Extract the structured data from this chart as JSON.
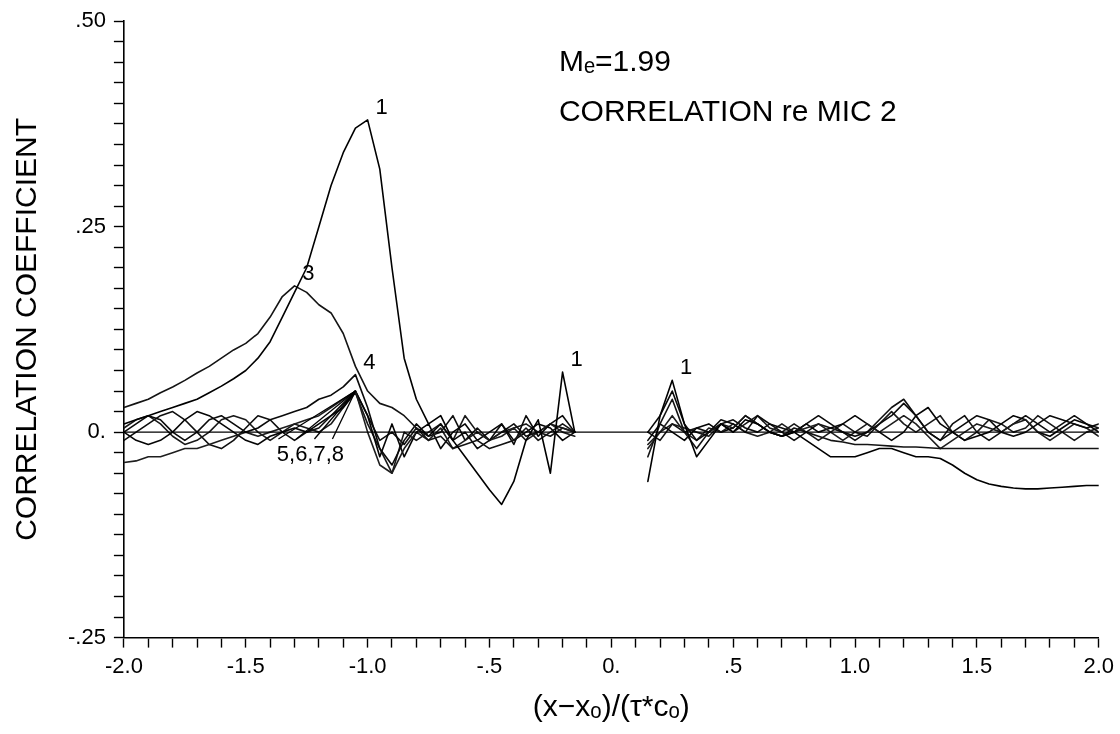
{
  "chart_data": {
    "type": "line",
    "title": "Mₑ=1.99",
    "subtitle": "CORRELATION re MIC 2",
    "xlabel": "(x−xₒ)/(τ*cₒ)",
    "ylabel": "CORRELATION COEFFICIENT",
    "x": [
      -2.0,
      -1.95,
      -1.9,
      -1.85,
      -1.8,
      -1.75,
      -1.7,
      -1.65,
      -1.6,
      -1.55,
      -1.5,
      -1.45,
      -1.4,
      -1.35,
      -1.3,
      -1.25,
      -1.2,
      -1.15,
      -1.1,
      -1.05,
      -1.0,
      -0.95,
      -0.9,
      -0.85,
      -0.8,
      -0.75,
      -0.7,
      -0.65,
      -0.6,
      -0.55,
      -0.5,
      -0.45,
      -0.4,
      -0.35,
      -0.3,
      -0.25,
      -0.2,
      -0.15,
      -0.1,
      -0.05,
      0.0,
      0.05,
      0.1,
      0.15,
      0.2,
      0.25,
      0.3,
      0.35,
      0.4,
      0.45,
      0.5,
      0.55,
      0.6,
      0.65,
      0.7,
      0.75,
      0.8,
      0.85,
      0.9,
      0.95,
      1.0,
      1.05,
      1.1,
      1.15,
      1.2,
      1.25,
      1.3,
      1.35,
      1.4,
      1.45,
      1.5,
      1.55,
      1.6,
      1.65,
      1.7,
      1.75,
      1.8,
      1.85,
      1.9,
      1.95,
      2.0
    ],
    "series": [
      {
        "color": "#000000",
        "values": [
          0.01,
          0.015,
          0.02,
          0.025,
          0.03,
          0.035,
          0.04,
          0.048,
          0.056,
          0.065,
          0.075,
          0.09,
          0.11,
          0.14,
          0.17,
          0.2,
          0.25,
          0.3,
          0.34,
          0.37,
          0.38,
          0.32,
          0.2,
          0.09,
          0.04,
          0.01,
          0.02,
          -0.01,
          -0.03,
          -0.05,
          -0.07,
          -0.088,
          -0.06,
          -0.01,
          0.015,
          -0.05,
          0.073,
          0.0,
          null,
          null,
          null,
          null,
          null,
          -0.06,
          0.02,
          0.063,
          0.01,
          -0.03,
          -0.01,
          0.01,
          0.0,
          0.015,
          0.01,
          0.0,
          -0.005,
          0.0,
          -0.01,
          -0.02,
          -0.03,
          -0.03,
          -0.03,
          -0.025,
          -0.02,
          -0.02,
          -0.025,
          -0.03,
          -0.03,
          -0.032,
          -0.04,
          -0.05,
          -0.058,
          -0.063,
          -0.066,
          -0.068,
          -0.069,
          -0.069,
          -0.068,
          -0.067,
          -0.066,
          -0.065,
          -0.065
        ]
      },
      {
        "color": "#141414",
        "values": [
          0.03,
          0.035,
          0.04,
          0.048,
          0.055,
          0.063,
          0.072,
          0.08,
          0.09,
          0.1,
          0.108,
          0.12,
          0.14,
          0.165,
          0.178,
          0.17,
          0.155,
          0.145,
          0.12,
          0.08,
          0.05,
          0.035,
          0.03,
          0.02,
          0.005,
          -0.01,
          -0.005,
          -0.02,
          -0.015,
          -0.01,
          -0.02,
          -0.015,
          -0.01,
          0.005,
          -0.01,
          0.0,
          0.01,
          0.0,
          null,
          null,
          null,
          null,
          null,
          -0.03,
          0.01,
          0.04,
          0.0,
          -0.02,
          0.0,
          0.01,
          0.005,
          0.02,
          0.01,
          0.0,
          -0.005,
          0.005,
          0.0,
          -0.005,
          -0.01,
          -0.012,
          -0.015,
          -0.015,
          -0.016,
          -0.017,
          -0.018,
          -0.018,
          -0.019,
          -0.02,
          -0.02,
          -0.02,
          -0.02,
          -0.02,
          -0.02,
          -0.02,
          -0.02,
          -0.02,
          -0.02,
          -0.02,
          -0.02,
          -0.02,
          -0.02
        ]
      },
      {
        "color": "#0a0a0a",
        "values": [
          0.0,
          0.01,
          0.02,
          0.015,
          0.0,
          -0.01,
          0.0,
          0.015,
          0.02,
          0.01,
          0.0,
          0.005,
          0.015,
          0.02,
          0.025,
          0.03,
          0.04,
          0.045,
          0.055,
          0.07,
          0.03,
          -0.02,
          -0.04,
          -0.01,
          0.01,
          -0.005,
          0.01,
          -0.01,
          0.0,
          -0.02,
          -0.01,
          0.01,
          -0.015,
          0.02,
          -0.005,
          0.01,
          0.02,
          0.0,
          null,
          null,
          null,
          null,
          null,
          0.0,
          0.02,
          0.05,
          0.01,
          -0.01,
          0.0,
          0.015,
          0.01,
          0.0,
          0.02,
          0.01,
          0.005,
          0.0,
          0.01,
          0.02,
          0.01,
          0.0,
          -0.005,
          0.0,
          0.01,
          0.02,
          0.035,
          0.02,
          0.0,
          -0.01,
          0.0,
          0.01,
          0.02,
          0.015,
          0.0,
          -0.005,
          0.0,
          0.01,
          0.02,
          0.015,
          0.01,
          0.005,
          0.01
        ]
      },
      {
        "color": "#1e1e1e",
        "values": [
          -0.037,
          -0.035,
          -0.03,
          -0.03,
          -0.025,
          -0.02,
          -0.02,
          -0.015,
          -0.01,
          -0.005,
          0.0,
          -0.005,
          0.0,
          0.005,
          0.01,
          0.015,
          0.02,
          0.03,
          0.04,
          0.05,
          0.0,
          -0.04,
          -0.05,
          -0.02,
          0.0,
          -0.01,
          0.005,
          -0.02,
          -0.01,
          0.0,
          -0.01,
          -0.005,
          0.005,
          -0.01,
          0.0,
          0.01,
          0.0,
          -0.005,
          null,
          null,
          null,
          null,
          null,
          -0.02,
          0.0,
          0.02,
          0.0,
          -0.01,
          0.005,
          0.0,
          0.01,
          0.0,
          -0.005,
          0.0,
          0.01,
          0.0,
          0.005,
          0.01,
          0.0,
          -0.01,
          0.0,
          0.01,
          0.0,
          0.01,
          0.02,
          0.01,
          -0.005,
          -0.02,
          -0.01,
          0.0,
          0.01,
          0.005,
          0.0,
          0.01,
          0.015,
          0.0,
          -0.01,
          0.0,
          0.01,
          0.005,
          -0.005
        ]
      },
      {
        "color": "#050505",
        "values": [
          0.0,
          -0.01,
          -0.015,
          -0.01,
          0.0,
          0.015,
          0.025,
          0.02,
          0.01,
          0.0,
          -0.01,
          -0.015,
          -0.005,
          0.0,
          0.005,
          0.0,
          0.01,
          0.02,
          0.03,
          0.05,
          0.02,
          -0.03,
          0.01,
          -0.03,
          0.0,
          0.01,
          -0.02,
          0.0,
          0.01,
          -0.01,
          0.0,
          0.01,
          -0.01,
          0.0,
          0.01,
          0.005,
          -0.01,
          0.0,
          null,
          null,
          null,
          null,
          null,
          -0.01,
          0.01,
          0.0,
          -0.01,
          0.005,
          0.01,
          0.0,
          0.005,
          0.02,
          0.01,
          0.0,
          -0.005,
          0.0,
          0.01,
          0.0,
          0.005,
          0.01,
          0.02,
          0.01,
          0.0,
          -0.01,
          0.0,
          0.02,
          0.03,
          0.01,
          0.0,
          -0.01,
          -0.005,
          0.0,
          0.01,
          0.02,
          0.015,
          0.0,
          -0.005,
          0.005,
          0.015,
          0.01,
          0.0
        ]
      },
      {
        "color": "#191919",
        "values": [
          0.005,
          0.015,
          0.02,
          0.01,
          -0.005,
          -0.015,
          -0.01,
          0.0,
          0.015,
          0.02,
          0.015,
          0.0,
          -0.01,
          0.0,
          0.01,
          0.005,
          0.0,
          0.01,
          0.03,
          0.048,
          0.01,
          -0.02,
          -0.05,
          0.0,
          -0.01,
          0.0,
          0.01,
          -0.01,
          0.02,
          0.0,
          -0.01,
          0.0,
          0.005,
          0.01,
          0.0,
          -0.005,
          0.005,
          0.0,
          null,
          null,
          null,
          null,
          null,
          -0.015,
          0.0,
          0.01,
          0.005,
          0.0,
          -0.005,
          0.01,
          0.0,
          0.01,
          0.02,
          0.005,
          0.0,
          0.01,
          0.0,
          -0.01,
          0.0,
          0.01,
          0.0,
          -0.005,
          0.01,
          0.025,
          0.01,
          0.0,
          0.01,
          0.02,
          0.0,
          -0.01,
          0.0,
          0.015,
          0.01,
          0.0,
          0.005,
          0.02,
          0.01,
          0.0,
          -0.01,
          0.0,
          0.005
        ]
      },
      {
        "color": "#0f0f0f",
        "values": [
          -0.01,
          0.0,
          0.01,
          0.02,
          0.025,
          0.015,
          0.0,
          -0.015,
          -0.02,
          -0.01,
          0.005,
          0.02,
          0.015,
          0.0,
          -0.01,
          0.0,
          0.005,
          0.02,
          0.035,
          0.05,
          0.02,
          -0.01,
          0.0,
          -0.015,
          0.005,
          -0.005,
          0.0,
          0.02,
          -0.01,
          0.005,
          -0.01,
          0.0,
          0.01,
          -0.005,
          0.0,
          0.01,
          0.005,
          0.0,
          null,
          null,
          null,
          null,
          null,
          0.0,
          -0.01,
          0.01,
          0.0,
          0.005,
          0.0,
          0.01,
          0.015,
          0.005,
          0.0,
          0.01,
          0.0,
          -0.01,
          0.0,
          0.01,
          0.005,
          0.0,
          -0.01,
          0.0,
          0.015,
          0.03,
          0.04,
          0.02,
          0.0,
          -0.01,
          0.01,
          0.02,
          0.0,
          -0.01,
          0.0,
          0.01,
          0.02,
          0.01,
          0.0,
          0.01,
          0.02,
          0.01,
          0.005
        ]
      }
    ],
    "xlim": [
      -2.0,
      2.0
    ],
    "ylim": [
      -0.25,
      0.5
    ],
    "xticks": [
      {
        "value": -2.0,
        "label": "-2.0"
      },
      {
        "value": -1.9,
        "label": null
      },
      {
        "value": -1.8,
        "label": null
      },
      {
        "value": -1.7,
        "label": null
      },
      {
        "value": -1.6,
        "label": null
      },
      {
        "value": -1.5,
        "label": "-1.5"
      },
      {
        "value": -1.4,
        "label": null
      },
      {
        "value": -1.3,
        "label": null
      },
      {
        "value": -1.2,
        "label": null
      },
      {
        "value": -1.1,
        "label": null
      },
      {
        "value": -1.0,
        "label": "-1.0"
      },
      {
        "value": -0.9,
        "label": null
      },
      {
        "value": -0.8,
        "label": null
      },
      {
        "value": -0.7,
        "label": null
      },
      {
        "value": -0.6,
        "label": null
      },
      {
        "value": -0.5,
        "label": "-.5"
      },
      {
        "value": -0.4,
        "label": null
      },
      {
        "value": -0.3,
        "label": null
      },
      {
        "value": -0.2,
        "label": null
      },
      {
        "value": -0.1,
        "label": null
      },
      {
        "value": 0,
        "label": "0."
      },
      {
        "value": 0.1,
        "label": null
      },
      {
        "value": 0.2,
        "label": null
      },
      {
        "value": 0.3,
        "label": null
      },
      {
        "value": 0.4,
        "label": null
      },
      {
        "value": 0.5,
        "label": ".5"
      },
      {
        "value": 0.6,
        "label": null
      },
      {
        "value": 0.7,
        "label": null
      },
      {
        "value": 0.8,
        "label": null
      },
      {
        "value": 0.9,
        "label": null
      },
      {
        "value": 1.0,
        "label": "1.0"
      },
      {
        "value": 1.1,
        "label": null
      },
      {
        "value": 1.2,
        "label": null
      },
      {
        "value": 1.3,
        "label": null
      },
      {
        "value": 1.4,
        "label": null
      },
      {
        "value": 1.5,
        "label": "1.5"
      },
      {
        "value": 1.6,
        "label": null
      },
      {
        "value": 1.7,
        "label": null
      },
      {
        "value": 1.8,
        "label": null
      },
      {
        "value": 1.9,
        "label": null
      },
      {
        "value": 2.0,
        "label": "2.0"
      }
    ],
    "yticks": [
      {
        "value": -0.25,
        "label": "-.25"
      },
      {
        "value": -0.225,
        "label": null
      },
      {
        "value": -0.2,
        "label": null
      },
      {
        "value": -0.175,
        "label": null
      },
      {
        "value": -0.15,
        "label": null
      },
      {
        "value": -0.125,
        "label": null
      },
      {
        "value": -0.1,
        "label": null
      },
      {
        "value": -0.075,
        "label": null
      },
      {
        "value": -0.05,
        "label": null
      },
      {
        "value": -0.025,
        "label": null
      },
      {
        "value": 0,
        "label": "0."
      },
      {
        "value": 0.025,
        "label": null
      },
      {
        "value": 0.05,
        "label": null
      },
      {
        "value": 0.075,
        "label": null
      },
      {
        "value": 0.1,
        "label": null
      },
      {
        "value": 0.125,
        "label": null
      },
      {
        "value": 0.15,
        "label": null
      },
      {
        "value": 0.175,
        "label": null
      },
      {
        "value": 0.2,
        "label": null
      },
      {
        "value": 0.225,
        "label": null
      },
      {
        "value": 0.25,
        "label": ".25"
      },
      {
        "value": 0.275,
        "label": null
      },
      {
        "value": 0.3,
        "label": null
      },
      {
        "value": 0.325,
        "label": null
      },
      {
        "value": 0.35,
        "label": null
      },
      {
        "value": 0.375,
        "label": null
      },
      {
        "value": 0.4,
        "label": null
      },
      {
        "value": 0.425,
        "label": null
      },
      {
        "value": 0.45,
        "label": null
      },
      {
        "value": 0.475,
        "label": null
      },
      {
        "value": 0.5,
        "label": ".50"
      }
    ],
    "ref_lines": [
      {
        "axis": "y",
        "value": 0,
        "color": "#000000"
      }
    ],
    "annotations": [
      {
        "text": "1",
        "x": -1.0,
        "y": 0.38
      },
      {
        "text": "3",
        "x": -1.3,
        "y": 0.178
      },
      {
        "text": "4",
        "x": -1.05,
        "y": 0.07
      },
      {
        "text": "5,6,7,8",
        "x": -1.05,
        "y": 0.05
      },
      {
        "text": "1",
        "x": -0.2,
        "y": 0.073
      },
      {
        "text": "1",
        "x": 0.25,
        "y": 0.063
      }
    ],
    "grid": false,
    "legend": false
  }
}
